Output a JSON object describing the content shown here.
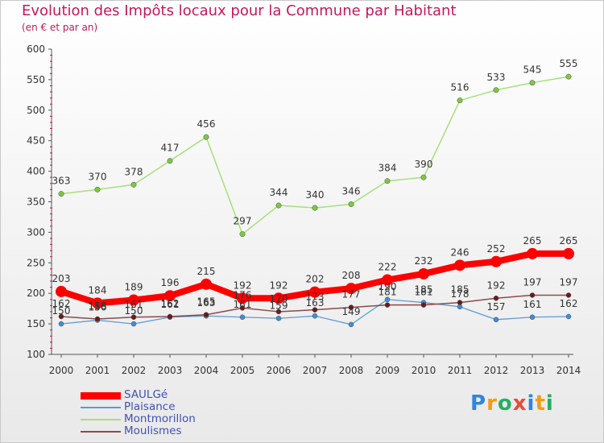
{
  "chart_data": {
    "type": "line",
    "title": "Evolution des Impôts locaux pour la Commune par Habitant",
    "subtitle": "(en € et par an)",
    "xlabel": "",
    "ylabel": "",
    "x": [
      "2000",
      "2001",
      "2002",
      "2003",
      "2004",
      "2005",
      "2006",
      "2007",
      "2008",
      "2009",
      "2010",
      "2011",
      "2012",
      "2013",
      "2014"
    ],
    "ylim": [
      100,
      600
    ],
    "yticks": [
      "100",
      "150",
      "200",
      "250",
      "300",
      "350",
      "400",
      "450",
      "500",
      "550",
      "600"
    ],
    "grid": false,
    "legend_position": "bottom-left",
    "series": [
      {
        "name": "SAULGé",
        "color": "#ff0000",
        "marker_color": "#ff0000",
        "values": [
          203,
          184,
          189,
          196,
          215,
          192,
          192,
          202,
          208,
          222,
          232,
          246,
          252,
          265,
          265
        ]
      },
      {
        "name": "Plaisance",
        "color": "#5b9bd5",
        "marker_color": "#3f8ed8",
        "values": [
          150,
          156,
          150,
          161,
          163,
          161,
          159,
          163,
          149,
          190,
          185,
          178,
          157,
          161,
          162
        ]
      },
      {
        "name": "Montmorillon",
        "color": "#a6e07a",
        "marker_color": "#7dc93f",
        "values": [
          363,
          370,
          378,
          417,
          456,
          297,
          344,
          340,
          346,
          384,
          390,
          516,
          533,
          545,
          555
        ]
      },
      {
        "name": "Moulismes",
        "color": "#8b4a4a",
        "marker_color": "#6b1a1a",
        "values": [
          162,
          158,
          161,
          162,
          165,
          176,
          170,
          173,
          177,
          181,
          181,
          185,
          192,
          197,
          197
        ]
      }
    ],
    "labels": [
      [
        "203",
        "184",
        "189",
        "196",
        "215",
        "192",
        "192",
        "202",
        "208",
        "222",
        "232",
        "246",
        "252",
        "265",
        "265"
      ],
      [
        "150",
        "156",
        "150",
        "161",
        "163",
        "161",
        "159",
        "163",
        "149",
        "190",
        "185",
        "178",
        "157",
        "161",
        "162"
      ],
      [
        "363",
        "370",
        "378",
        "417",
        "456",
        "297",
        "344",
        "340",
        "346",
        "384",
        "390",
        "516",
        "533",
        "545",
        "555"
      ],
      [
        "162",
        "158",
        "161",
        "162",
        "165",
        "176",
        "170",
        "173",
        "177",
        "181",
        "181",
        "185",
        "192",
        "197",
        "197"
      ]
    ]
  },
  "legend": {
    "items": [
      {
        "label": "SAULGé"
      },
      {
        "label": "Plaisance"
      },
      {
        "label": "Montmorillon"
      },
      {
        "label": "Moulismes"
      }
    ]
  },
  "logo": {
    "letters": [
      "P",
      "r",
      "o",
      "x",
      "i",
      "t",
      "i"
    ],
    "colors": [
      "#2e86de",
      "#f39c12",
      "#27ae60",
      "#e74c3c",
      "#2e86de",
      "#f39c12",
      "#27ae60"
    ]
  }
}
